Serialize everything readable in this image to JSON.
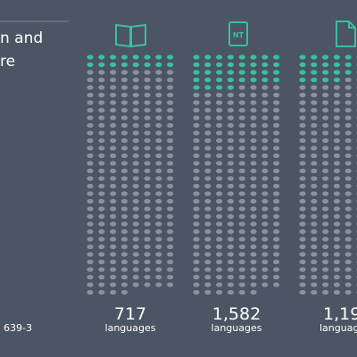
{
  "left": {
    "title_lines": [
      "n and",
      "re"
    ],
    "footnote": "639-3"
  },
  "columns": [
    {
      "icon_label": null,
      "count": "717",
      "unit": "languages"
    },
    {
      "icon_label": "NT",
      "count": "1,582",
      "unit": "languages"
    },
    {
      "icon_label": null,
      "count": "1,19",
      "unit": "language"
    }
  ]
}
